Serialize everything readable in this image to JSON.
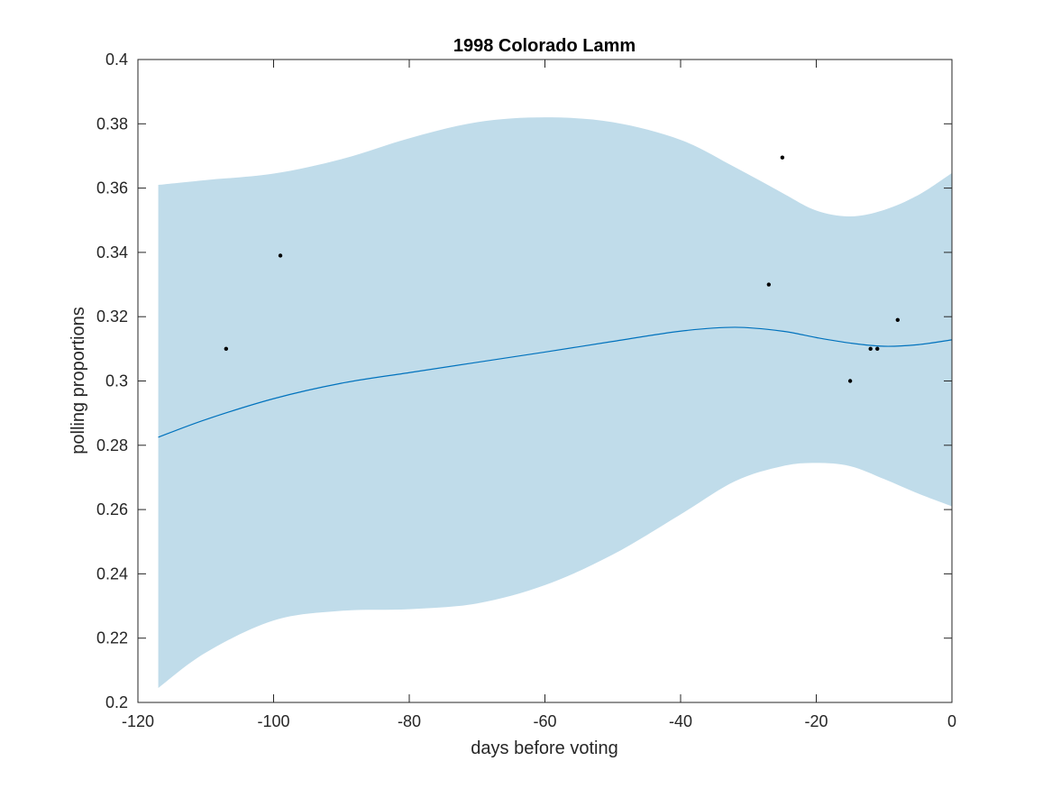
{
  "chart_data": {
    "type": "line",
    "title": "1998 Colorado Lamm",
    "xlabel": "days before voting",
    "ylabel": "polling proportions",
    "xlim": [
      -120,
      0
    ],
    "ylim": [
      0.2,
      0.4
    ],
    "x_ticks": [
      -120,
      -100,
      -80,
      -60,
      -40,
      -20,
      0
    ],
    "x_tick_labels": [
      "-120",
      "-100",
      "-80",
      "-60",
      "-40",
      "-20",
      "0"
    ],
    "y_ticks": [
      0.2,
      0.22,
      0.24,
      0.26,
      0.28,
      0.3,
      0.32,
      0.34,
      0.36,
      0.38,
      0.4
    ],
    "y_tick_labels": [
      "0.2",
      "0.22",
      "0.24",
      "0.26",
      "0.28",
      "0.3",
      "0.32",
      "0.34",
      "0.36",
      "0.38",
      "0.4"
    ],
    "grid": false,
    "colors": {
      "band": "#c0dcea",
      "line": "#0072bd",
      "points": "#000000",
      "axes": "#262626"
    },
    "trend": {
      "x": [
        -117,
        -110,
        -100,
        -90,
        -80,
        -70,
        -60,
        -50,
        -40,
        -32,
        -25,
        -20,
        -15,
        -10,
        -5,
        0
      ],
      "y": [
        0.2825,
        0.288,
        0.2945,
        0.2993,
        0.3026,
        0.3058,
        0.309,
        0.3123,
        0.3155,
        0.3167,
        0.3155,
        0.3135,
        0.3118,
        0.3108,
        0.3113,
        0.3128
      ],
      "upper": [
        0.361,
        0.3625,
        0.3645,
        0.369,
        0.3755,
        0.3805,
        0.382,
        0.3805,
        0.375,
        0.3665,
        0.3585,
        0.353,
        0.3512,
        0.3532,
        0.3578,
        0.3647
      ],
      "lower": [
        0.2045,
        0.2155,
        0.2255,
        0.2285,
        0.229,
        0.2308,
        0.2365,
        0.246,
        0.2585,
        0.2688,
        0.2735,
        0.2745,
        0.2735,
        0.2695,
        0.265,
        0.261
      ]
    },
    "points": {
      "x": [
        -107,
        -99,
        -27,
        -25,
        -15,
        -12,
        -11,
        -8
      ],
      "y": [
        0.31,
        0.339,
        0.33,
        0.3695,
        0.3,
        0.31,
        0.31,
        0.319
      ]
    }
  }
}
